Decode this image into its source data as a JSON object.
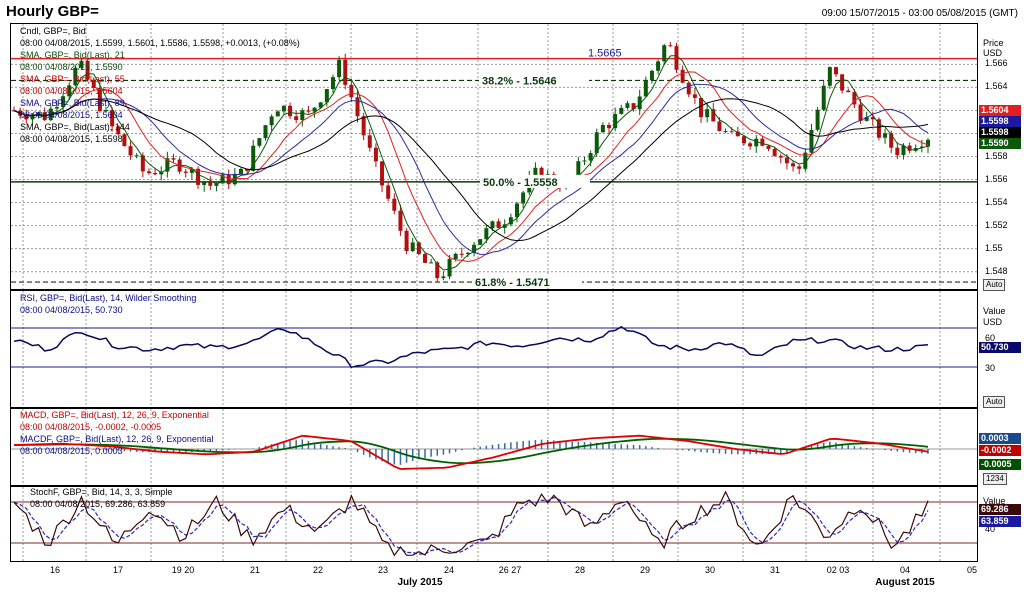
{
  "window": {
    "title": "Hourly GBP=",
    "date_range": "09:00 15/07/2015 - 03:00 05/08/2015 (GMT)"
  },
  "colors": {
    "sma21": "#0a5a0a",
    "sma55": "#e02020",
    "sma89": "#2a2aa0",
    "sma144": "#000000",
    "candle_up": "#0a5a0a",
    "candle_down": "#b01010",
    "rsi": "#0a0a5a",
    "macd": "#e00000",
    "macd_signal": "#006000",
    "stoch_k": "#3a0a0a",
    "stoch_d": "#2a2ac0"
  },
  "price_panel": {
    "legend": [
      "Cndl, GBP=, Bid",
      "08:00 04/08/2015, 1.5599, 1.5601, 1.5586, 1.5598, +0.0013, (+0.08%)",
      "SMA, GBP=, Bid(Last), 21",
      "08:00 04/08/2015, 1.5590",
      "SMA, GBP=, Bid(Last), 55",
      "08:00 04/08/2015, 1.5604",
      "SMA, GBP=, Bid(Last), 89",
      "08:00 04/08/2015, 1.5604",
      "SMA, GBP=, Bid(Last), 144",
      "08:00 04/08/2015, 1.5598"
    ],
    "axis_header": "Price",
    "currency": "USD",
    "y_ticks": [
      "1.566",
      "1.564",
      "1.562",
      "1.56",
      "1.558",
      "1.556",
      "1.554",
      "1.552",
      "1.55",
      "1.548"
    ],
    "tags": [
      "1.5604",
      "1.5598",
      "1.5598",
      "1.5590"
    ],
    "auto_label": "Auto",
    "resistance_label": "1.5665",
    "fib_382": "38.2% - 1.5646",
    "fib_500": "50.0% - 1.5558",
    "fib_618": "61.8% - 1.5471"
  },
  "rsi_panel": {
    "legend": [
      "RSI, GBP=, Bid(Last), 14, Wilder Smoothing",
      "08:00 04/08/2015, 50.730"
    ],
    "axis_header": "Value",
    "currency": "USD",
    "y_ticks": [
      "60",
      "30"
    ],
    "tag": "50.730",
    "auto_label": "Auto"
  },
  "macd_panel": {
    "legend": [
      "MACD, GBP=, Bid(Last), 12, 26, 9, Exponential",
      "08:00 04/08/2015, -0.0002, -0.0005",
      "MACDF, GBP=, Bid(Last), 12, 26, 9, Exponential",
      "08:00 04/08/2015, 0.0003"
    ],
    "tags": [
      "0.0003",
      "-0.0002",
      "-0.0005"
    ],
    "scale_label": "1234"
  },
  "stoch_panel": {
    "legend": [
      "StochF, GBP=, Bid, 14, 3, 3, Simple",
      "08:00 04/08/2015, 69.286, 63.859"
    ],
    "axis_header": "Value",
    "y_tick": "40",
    "tags": [
      "69.286",
      "63.859"
    ]
  },
  "x_axis": {
    "days": [
      "16",
      "17",
      "19 20",
      "21",
      "22",
      "23",
      "24",
      "26 27",
      "28",
      "29",
      "30",
      "31",
      "02 03",
      "04",
      "05"
    ],
    "months": [
      "July 2015",
      "August 2015"
    ]
  },
  "chart_data": {
    "type": "candlestick",
    "title": "Hourly GBP=",
    "instrument": "GBP=",
    "ylabel": "USD",
    "ylim": [
      1.5465,
      1.5695
    ],
    "levels": [
      {
        "label": "1.5665",
        "value": 1.5665
      },
      {
        "label": "38.2% - 1.5646",
        "value": 1.5646
      },
      {
        "label": "50.0% - 1.5558",
        "value": 1.5558
      },
      {
        "label": "61.8% - 1.5471",
        "value": 1.5471
      }
    ],
    "price_path": [
      {
        "day": "16",
        "value": 1.562
      },
      {
        "day": "17",
        "value": 1.5615
      },
      {
        "day": "17",
        "value": 1.566
      },
      {
        "day": "19 20",
        "value": 1.5605
      },
      {
        "day": "19 20",
        "value": 1.5565
      },
      {
        "day": "21",
        "value": 1.5575
      },
      {
        "day": "21",
        "value": 1.5555
      },
      {
        "day": "22",
        "value": 1.5565
      },
      {
        "day": "22",
        "value": 1.5625
      },
      {
        "day": "23",
        "value": 1.5615
      },
      {
        "day": "23",
        "value": 1.566
      },
      {
        "day": "23",
        "value": 1.5575
      },
      {
        "day": "24",
        "value": 1.5505
      },
      {
        "day": "24",
        "value": 1.5475
      },
      {
        "day": "26 27",
        "value": 1.5505
      },
      {
        "day": "26 27",
        "value": 1.5525
      },
      {
        "day": "28",
        "value": 1.5565
      },
      {
        "day": "28",
        "value": 1.5555
      },
      {
        "day": "29",
        "value": 1.5605
      },
      {
        "day": "29",
        "value": 1.5625
      },
      {
        "day": "29",
        "value": 1.568
      },
      {
        "day": "30",
        "value": 1.562
      },
      {
        "day": "30",
        "value": 1.5595
      },
      {
        "day": "31",
        "value": 1.5595
      },
      {
        "day": "31",
        "value": 1.5565
      },
      {
        "day": "02 03",
        "value": 1.5655
      },
      {
        "day": "02 03",
        "value": 1.5615
      },
      {
        "day": "04",
        "value": 1.5585
      },
      {
        "day": "04",
        "value": 1.5598
      }
    ],
    "last": {
      "open": 1.5599,
      "high": 1.5601,
      "low": 1.5586,
      "close": 1.5598
    },
    "series": [
      {
        "name": "SMA, GBP=, Bid(Last), 21",
        "last": 1.559
      },
      {
        "name": "SMA, GBP=, Bid(Last), 55",
        "last": 1.5604
      },
      {
        "name": "SMA, GBP=, Bid(Last), 89",
        "last": 1.5604
      },
      {
        "name": "SMA, GBP=, Bid(Last), 144",
        "last": 1.5598
      }
    ],
    "rsi": {
      "name": "RSI, GBP=, Bid(Last), 14, Wilder Smoothing",
      "last": 50.73,
      "upper": 70,
      "lower": 30,
      "path": [
        58,
        48,
        68,
        52,
        48,
        52,
        50,
        55,
        70,
        52,
        32,
        35,
        45,
        48,
        55,
        52,
        60,
        58,
        72,
        52,
        48,
        55,
        40,
        56,
        58,
        50,
        48,
        51
      ]
    },
    "macd": {
      "name": "MACD, GBP=, Bid(Last), 12, 26, 9, Exponential",
      "macd_last": -0.0002,
      "signal_last": -0.0005,
      "hist_last": 0.0003,
      "macd_path": [
        0.0003,
        0.0004,
        0.0002,
        -0.0002,
        -0.0004,
        -0.0002,
        0.001,
        0.0006,
        -0.0015,
        -0.0014,
        -0.0006,
        0.0004,
        0.0008,
        0.001,
        0.0006,
        0.0,
        -0.0004,
        0.0008,
        0.0004,
        -0.0002
      ]
    },
    "stochastic": {
      "name": "StochF, GBP=, Bid, 14, 3, 3, Simple",
      "k_last": 69.286,
      "d_last": 63.859,
      "upper": 80,
      "lower": 20,
      "path": [
        80,
        20,
        85,
        15,
        75,
        30,
        80,
        25,
        70,
        35,
        85,
        10,
        5,
        15,
        20,
        80,
        85,
        40,
        90,
        15,
        60,
        85,
        10,
        90,
        30,
        80,
        15,
        70
      ]
    }
  }
}
